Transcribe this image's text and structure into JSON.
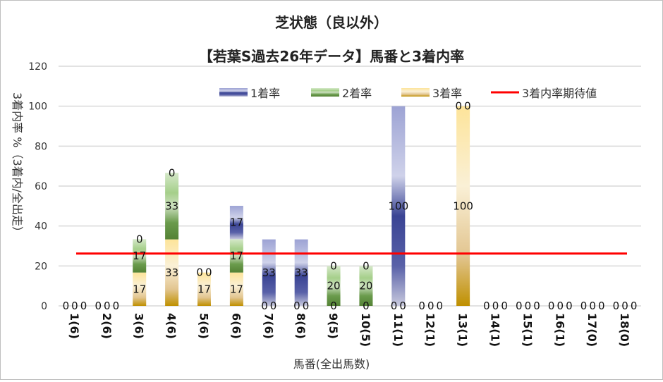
{
  "chart_data": {
    "type": "bar",
    "stacked": true,
    "title": "芝状態（良以外）",
    "subtitle": "【若葉S過去26年データ】馬番と3着内率",
    "xlabel": "馬番(全出馬数)",
    "ylabel": "3着内率 %（3着内/全出走）",
    "ylim": [
      0,
      120
    ],
    "yticks": [
      "0",
      "20",
      "40",
      "60",
      "80",
      "100",
      "120"
    ],
    "grid": true,
    "legend_position": "top-right",
    "categories": [
      "1(6)",
      "2(6)",
      "3(6)",
      "4(6)",
      "5(6)",
      "6(6)",
      "7(6)",
      "8(6)",
      "9(5)",
      "10(5)",
      "11(1)",
      "12(1)",
      "13(1)",
      "14(1)",
      "15(1)",
      "16(1)",
      "17(0)",
      "18(0)"
    ],
    "series": [
      {
        "name": "3着率",
        "color": "#bf9000",
        "values": [
          0,
          0,
          16.7,
          33.3,
          16.7,
          16.7,
          0,
          0,
          0,
          0,
          0,
          0,
          100,
          0,
          0,
          0,
          0,
          0
        ]
      },
      {
        "name": "2着率",
        "color": "#548235",
        "values": [
          0,
          0,
          16.7,
          33.3,
          0,
          16.7,
          0,
          0,
          20,
          20,
          0,
          0,
          0,
          0,
          0,
          0,
          0,
          0
        ]
      },
      {
        "name": "1着率",
        "color": "#2f3a8f",
        "values": [
          0,
          0,
          0,
          0,
          0,
          16.7,
          33.3,
          33.3,
          0,
          0,
          100,
          0,
          0,
          0,
          0,
          0,
          0,
          0
        ]
      }
    ],
    "legend": [
      "1着率",
      "2着率",
      "3着率",
      "3着内率期待値"
    ],
    "reference_line": {
      "name": "3着内率期待値",
      "value": 26.2,
      "color": "#ff0000"
    }
  }
}
